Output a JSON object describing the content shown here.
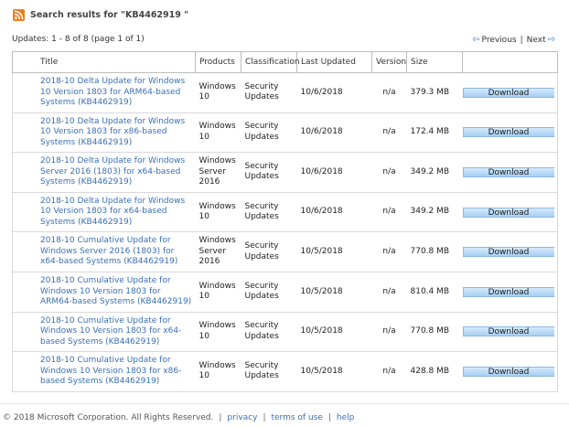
{
  "header": {
    "icon": "rss-feed-icon",
    "search_title": "Search results for \"KB4462919 \""
  },
  "summary": {
    "count_text": "Updates: 1 - 8 of 8 (page 1 of 1)",
    "previous_label": "Previous",
    "next_label": "Next",
    "separator": "|"
  },
  "table": {
    "columns": [
      "Title",
      "Products",
      "Classification",
      "Last Updated",
      "Version",
      "Size",
      ""
    ],
    "download_label": "Download",
    "rows": [
      {
        "title": "2018-10 Delta Update for Windows 10 Version 1803 for ARM64-based Systems (KB4462919)",
        "product": "Windows 10",
        "classification": "Security Updates",
        "updated": "10/6/2018",
        "version": "n/a",
        "size": "379.3 MB"
      },
      {
        "title": "2018-10 Delta Update for Windows 10 Version 1803 for x86-based Systems (KB4462919)",
        "product": "Windows 10",
        "classification": "Security Updates",
        "updated": "10/6/2018",
        "version": "n/a",
        "size": "172.4 MB"
      },
      {
        "title": "2018-10 Delta Update for Windows Server 2016 (1803) for x64-based Systems (KB4462919)",
        "product": "Windows Server 2016",
        "classification": "Security Updates",
        "updated": "10/6/2018",
        "version": "n/a",
        "size": "349.2 MB"
      },
      {
        "title": "2018-10 Delta Update for Windows 10 Version 1803 for x64-based Systems (KB4462919)",
        "product": "Windows 10",
        "classification": "Security Updates",
        "updated": "10/6/2018",
        "version": "n/a",
        "size": "349.2 MB"
      },
      {
        "title": "2018-10 Cumulative Update for Windows Server 2016 (1803) for x64-based Systems (KB4462919)",
        "product": "Windows Server 2016",
        "classification": "Security Updates",
        "updated": "10/5/2018",
        "version": "n/a",
        "size": "770.8 MB"
      },
      {
        "title": "2018-10 Cumulative Update for Windows 10 Version 1803 for ARM64-based Systems (KB4462919)",
        "product": "Windows 10",
        "classification": "Security Updates",
        "updated": "10/5/2018",
        "version": "n/a",
        "size": "810.4 MB"
      },
      {
        "title": "2018-10 Cumulative Update for Windows 10 Version 1803 for x64-based Systems (KB4462919)",
        "product": "Windows 10",
        "classification": "Security Updates",
        "updated": "10/5/2018",
        "version": "n/a",
        "size": "770.8 MB"
      },
      {
        "title": "2018-10 Cumulative Update for Windows 10 Version 1803 for x86-based Systems (KB4462919)",
        "product": "Windows 10",
        "classification": "Security Updates",
        "updated": "10/5/2018",
        "version": "n/a",
        "size": "428.8 MB"
      }
    ]
  },
  "footer": {
    "copyright": "© 2018 Microsoft Corporation. All Rights Reserved.",
    "separator": "|",
    "privacy": "privacy",
    "terms": "terms of use",
    "help": "help"
  },
  "colors": {
    "link": "#3b6fb5",
    "rss": "#f07d1c",
    "button": "#a6cff4"
  }
}
